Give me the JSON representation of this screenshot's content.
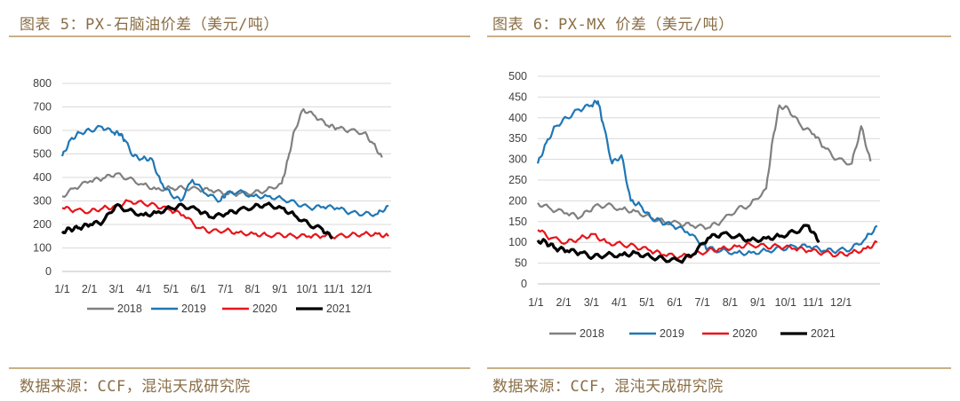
{
  "left": {
    "title": "图表 5：PX-石脑油价差（美元/吨）",
    "source": "数据来源：CCF，混沌天成研究院"
  },
  "right": {
    "title": "图表 6：PX-MX 价差（美元/吨）",
    "source": "数据来源：CCF，混沌天成研究院"
  },
  "colors": {
    "2018": "#808080",
    "2019": "#1f77b4",
    "2020": "#e8141a",
    "2021": "#000000"
  },
  "chart_data": [
    {
      "type": "line",
      "title": "图表 5：PX-石脑油价差（美元/吨）",
      "xlabel": "",
      "ylabel": "",
      "x_ticks": [
        "1/1",
        "2/1",
        "3/1",
        "4/1",
        "5/1",
        "6/1",
        "7/1",
        "8/1",
        "9/1",
        "10/1",
        "11/1",
        "12/1"
      ],
      "y_ticks": [
        0,
        100,
        200,
        300,
        400,
        500,
        600,
        700,
        800
      ],
      "ylim": [
        0,
        800
      ],
      "grid": true,
      "legend": "bottom",
      "series": [
        {
          "name": "2018",
          "x": [
            1,
            15,
            32,
            46,
            60,
            74,
            91,
            105,
            121,
            135,
            152,
            166,
            182,
            196,
            213,
            227,
            244,
            251,
            258,
            268,
            281,
            295,
            305,
            319,
            335,
            345,
            355
          ],
          "y": [
            320,
            355,
            385,
            395,
            415,
            395,
            370,
            350,
            355,
            355,
            350,
            345,
            330,
            330,
            335,
            345,
            375,
            480,
            600,
            690,
            660,
            620,
            610,
            600,
            590,
            545,
            485
          ]
        },
        {
          "name": "2019",
          "x": [
            1,
            10,
            20,
            32,
            45,
            58,
            65,
            70,
            80,
            90,
            100,
            110,
            121,
            132,
            145,
            160,
            176,
            182,
            196,
            213,
            228,
            244,
            260,
            275,
            290,
            305,
            320,
            335,
            350,
            362
          ],
          "y": [
            490,
            560,
            590,
            600,
            615,
            590,
            585,
            560,
            490,
            480,
            480,
            380,
            330,
            300,
            390,
            330,
            300,
            330,
            340,
            320,
            320,
            310,
            290,
            270,
            275,
            270,
            250,
            245,
            245,
            280
          ]
        },
        {
          "name": "2020",
          "x": [
            1,
            15,
            32,
            46,
            60,
            74,
            91,
            105,
            121,
            135,
            152,
            166,
            182,
            196,
            213,
            227,
            244,
            258,
            274,
            289,
            305,
            320,
            335,
            350,
            362
          ],
          "y": [
            270,
            260,
            255,
            270,
            275,
            300,
            290,
            280,
            260,
            240,
            185,
            170,
            175,
            165,
            160,
            155,
            155,
            150,
            150,
            150,
            150,
            155,
            160,
            160,
            150
          ]
        },
        {
          "name": "2021",
          "x": [
            1,
            10,
            20,
            32,
            46,
            60,
            74,
            91,
            105,
            121,
            135,
            152,
            166,
            182,
            196,
            213,
            227,
            244,
            258,
            274,
            289,
            300
          ],
          "y": [
            170,
            180,
            185,
            200,
            210,
            280,
            260,
            240,
            250,
            270,
            280,
            260,
            230,
            245,
            260,
            275,
            285,
            270,
            240,
            200,
            180,
            140
          ]
        }
      ]
    },
    {
      "type": "line",
      "title": "图表 6：PX-MX 价差（美元/吨）",
      "xlabel": "",
      "ylabel": "",
      "x_ticks": [
        "1/1",
        "2/1",
        "3/1",
        "4/1",
        "5/1",
        "6/1",
        "7/1",
        "8/1",
        "9/1",
        "10/1",
        "11/1",
        "12/1"
      ],
      "y_ticks": [
        0,
        50,
        100,
        150,
        200,
        250,
        300,
        350,
        400,
        450,
        500
      ],
      "ylim": [
        0,
        500
      ],
      "grid": true,
      "legend": "bottom",
      "series": [
        {
          "name": "2018",
          "x": [
            1,
            15,
            32,
            46,
            60,
            74,
            91,
            105,
            121,
            135,
            152,
            166,
            182,
            196,
            213,
            227,
            244,
            251,
            258,
            268,
            281,
            295,
            305,
            319,
            335,
            345,
            355
          ],
          "y": [
            195,
            180,
            170,
            160,
            185,
            190,
            180,
            175,
            160,
            150,
            145,
            140,
            135,
            150,
            180,
            190,
            230,
            350,
            430,
            420,
            380,
            360,
            330,
            300,
            290,
            380,
            295
          ]
        },
        {
          "name": "2019",
          "x": [
            1,
            10,
            20,
            32,
            45,
            58,
            65,
            70,
            80,
            90,
            100,
            110,
            121,
            132,
            145,
            160,
            176,
            182,
            196,
            213,
            228,
            244,
            260,
            275,
            290,
            305,
            320,
            335,
            350,
            362
          ],
          "y": [
            290,
            340,
            380,
            400,
            420,
            430,
            440,
            390,
            290,
            310,
            200,
            190,
            160,
            150,
            140,
            125,
            95,
            85,
            80,
            75,
            75,
            80,
            85,
            90,
            90,
            80,
            80,
            85,
            110,
            140
          ]
        },
        {
          "name": "2020",
          "x": [
            1,
            15,
            32,
            46,
            60,
            74,
            91,
            105,
            121,
            135,
            152,
            166,
            182,
            196,
            213,
            227,
            244,
            258,
            274,
            289,
            305,
            320,
            335,
            350,
            362
          ],
          "y": [
            130,
            110,
            100,
            110,
            120,
            100,
            95,
            90,
            80,
            70,
            65,
            70,
            80,
            85,
            90,
            95,
            90,
            90,
            85,
            80,
            75,
            70,
            75,
            85,
            100
          ]
        },
        {
          "name": "2021",
          "x": [
            1,
            10,
            20,
            32,
            46,
            60,
            74,
            91,
            105,
            121,
            135,
            152,
            166,
            182,
            196,
            213,
            227,
            244,
            258,
            274,
            289,
            300
          ],
          "y": [
            105,
            100,
            85,
            80,
            75,
            65,
            70,
            70,
            75,
            65,
            60,
            55,
            70,
            110,
            120,
            115,
            105,
            110,
            115,
            125,
            140,
            100
          ]
        }
      ]
    }
  ]
}
